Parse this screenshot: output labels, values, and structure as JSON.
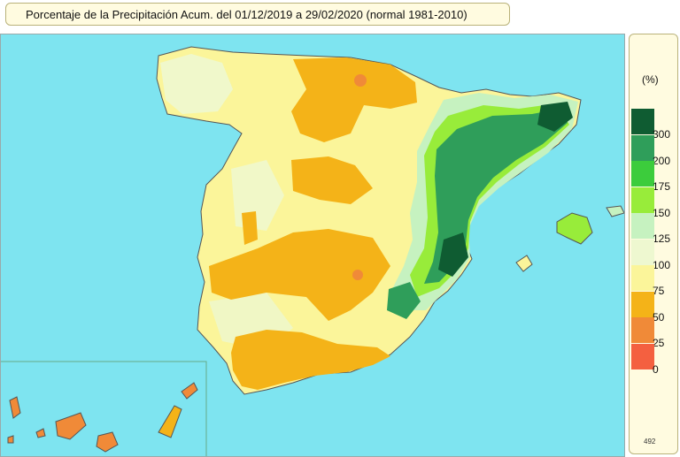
{
  "title": "Porcentaje de la Precipitación Acum. del 01/12/2019 a  29/02/2020  (normal 1981-2010)",
  "legend": {
    "unit": "(%)",
    "code": "492",
    "classes": [
      {
        "label": "300",
        "color": "#0f5c32"
      },
      {
        "label": "200",
        "color": "#2f9e5a"
      },
      {
        "label": "175",
        "color": "#3ccc3c"
      },
      {
        "label": "150",
        "color": "#98ec3a"
      },
      {
        "label": "125",
        "color": "#c6f2c0"
      },
      {
        "label": "100",
        "color": "#eef8d0"
      },
      {
        "label": "75",
        "color": "#fbf59a"
      },
      {
        "label": "50",
        "color": "#f4b318"
      },
      {
        "label": "25",
        "color": "#f08a38"
      },
      {
        "label": "0",
        "color": "#f46040"
      }
    ]
  },
  "colors": {
    "sea": "#7ee4f0",
    "land_base": "#fbf59a",
    "dry": "#f4b318",
    "very_dry": "#f08a38",
    "wet": "#c6f2c0",
    "very_wet": "#2f9e5a",
    "extremely_wet": "#0f5c32"
  }
}
